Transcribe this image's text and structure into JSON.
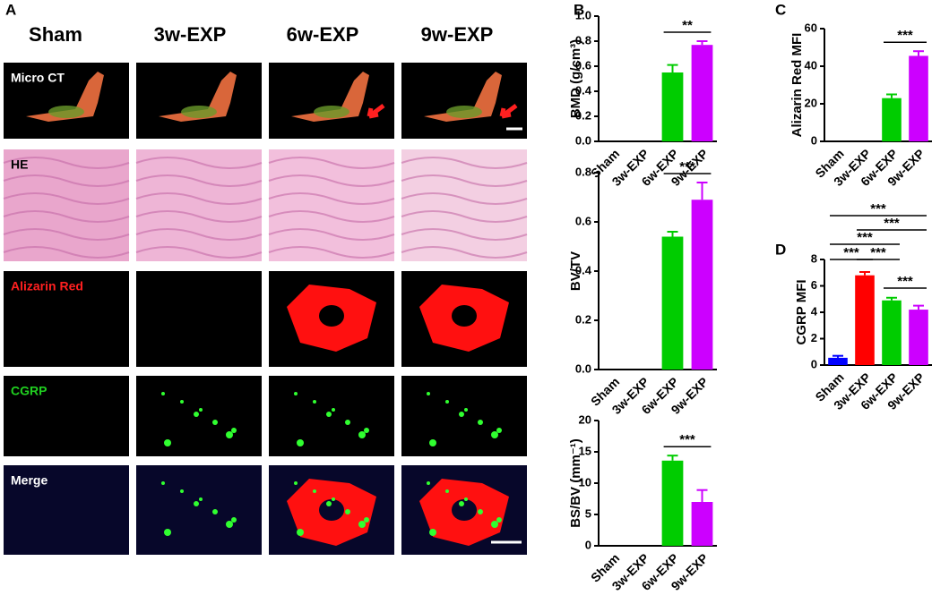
{
  "panel_labels": [
    "A",
    "B",
    "C",
    "D"
  ],
  "panel_a": {
    "columns": [
      "Sham",
      "3w-EXP",
      "6w-EXP",
      "9w-EXP"
    ],
    "rows": [
      "Micro CT",
      "HE",
      "Alizarin Red",
      "CGRP",
      "Merge"
    ]
  },
  "chart_data": [
    {
      "type": "bar",
      "ylabel": "BMD (g/cm³)",
      "categories": [
        "Sham",
        "3w-EXP",
        "6w-EXP",
        "9w-EXP"
      ],
      "values": [
        0,
        0,
        0.55,
        0.77
      ],
      "errors": [
        0,
        0,
        0.06,
        0.03
      ],
      "colors": [
        "#0000ff",
        "#ff0000",
        "#00cc00",
        "#cc00ff"
      ],
      "ylim": [
        0,
        1.0
      ],
      "yticks": [
        {
          "value": 0,
          "label": "0.0"
        },
        {
          "value": 0.2,
          "label": "0.2"
        },
        {
          "value": 0.4,
          "label": "0.4"
        },
        {
          "value": 0.6,
          "label": "0.6"
        },
        {
          "value": 0.8,
          "label": "0.8"
        },
        {
          "value": 1.0,
          "label": "1.0"
        }
      ],
      "annotations": [
        {
          "label": "**",
          "between": [
            "6w-EXP",
            "9w-EXP"
          ]
        }
      ]
    },
    {
      "type": "bar",
      "ylabel": "BV/TV",
      "categories": [
        "Sham",
        "3w-EXP",
        "6w-EXP",
        "9w-EXP"
      ],
      "values": [
        0,
        0,
        0.54,
        0.69
      ],
      "errors": [
        0,
        0,
        0.02,
        0.07
      ],
      "colors": [
        "#0000ff",
        "#ff0000",
        "#00cc00",
        "#cc00ff"
      ],
      "ylim": [
        0,
        0.8
      ],
      "yticks": [
        {
          "value": 0,
          "label": "0.0"
        },
        {
          "value": 0.2,
          "label": "0.2"
        },
        {
          "value": 0.4,
          "label": "0.4"
        },
        {
          "value": 0.6,
          "label": "0.6"
        },
        {
          "value": 0.8,
          "label": "0.8"
        }
      ],
      "annotations": [
        {
          "label": "***",
          "between": [
            "6w-EXP",
            "9w-EXP"
          ]
        }
      ]
    },
    {
      "type": "bar",
      "ylabel": "BS/BV (mm⁻¹)",
      "categories": [
        "Sham",
        "3w-EXP",
        "6w-EXP",
        "9w-EXP"
      ],
      "values": [
        0,
        0,
        13.6,
        7.0
      ],
      "errors": [
        0,
        0,
        0.8,
        1.9
      ],
      "colors": [
        "#0000ff",
        "#ff0000",
        "#00cc00",
        "#cc00ff"
      ],
      "ylim": [
        0,
        20
      ],
      "yticks": [
        0,
        5,
        10,
        15,
        20
      ],
      "annotations": [
        {
          "label": "***",
          "between": [
            "6w-EXP",
            "9w-EXP"
          ]
        }
      ]
    },
    {
      "type": "bar",
      "ylabel": "Alizarin Red MFI",
      "categories": [
        "Sham",
        "3w-EXP",
        "6w-EXP",
        "9w-EXP"
      ],
      "values": [
        0,
        0,
        23,
        45.5
      ],
      "errors": [
        0,
        0,
        2,
        2.5
      ],
      "colors": [
        "#0000ff",
        "#ff0000",
        "#00cc00",
        "#cc00ff"
      ],
      "ylim": [
        0,
        60
      ],
      "yticks": [
        0,
        20,
        40,
        60
      ],
      "annotations": [
        {
          "label": "***",
          "between": [
            "6w-EXP",
            "9w-EXP"
          ]
        }
      ]
    },
    {
      "type": "bar",
      "ylabel": "CGRP MFI",
      "categories": [
        "Sham",
        "3w-EXP",
        "6w-EXP",
        "9w-EXP"
      ],
      "values": [
        0.55,
        6.8,
        4.9,
        4.2
      ],
      "errors": [
        0.15,
        0.25,
        0.2,
        0.3
      ],
      "colors": [
        "#0000ff",
        "#ff0000",
        "#00cc00",
        "#cc00ff"
      ],
      "ylim": [
        0,
        8
      ],
      "yticks": [
        0,
        2,
        4,
        6,
        8
      ],
      "annotations": [
        {
          "label": "***",
          "between": [
            "Sham",
            "9w-EXP"
          ]
        },
        {
          "label": "***",
          "between": [
            "3w-EXP",
            "9w-EXP"
          ]
        },
        {
          "label": "***",
          "between": [
            "Sham",
            "6w-EXP"
          ]
        },
        {
          "label": "***",
          "between": [
            "Sham",
            "3w-EXP"
          ]
        },
        {
          "label": "***",
          "between": [
            "3w-EXP",
            "6w-EXP"
          ]
        },
        {
          "label": "***",
          "between": [
            "6w-EXP",
            "9w-EXP"
          ]
        }
      ]
    }
  ]
}
